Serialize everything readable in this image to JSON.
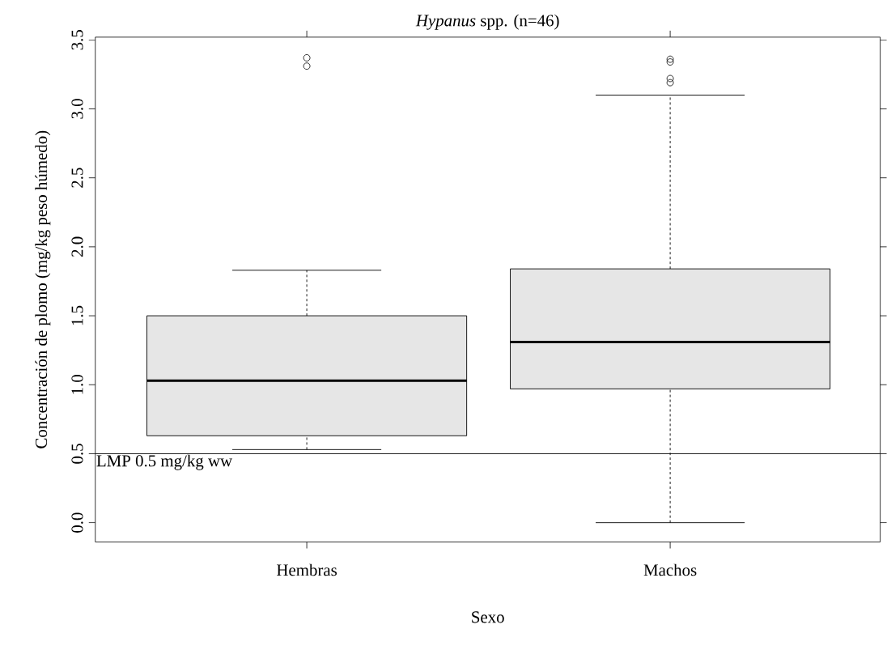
{
  "chart_data": {
    "type": "box",
    "title": "*Hypanus* spp. (n=46)",
    "xlabel": "Sexo",
    "ylabel": "Concentración de plomo (mg/kg peso húmedo)",
    "categories": [
      "Hembras",
      "Machos"
    ],
    "series": [
      {
        "color": "#e6e6e6",
        "boxes": [
          {
            "low": 0.53,
            "q1": 0.63,
            "median": 1.03,
            "q3": 1.5,
            "high": 1.83,
            "outliers": [
              3.37,
              3.31
            ]
          },
          {
            "low": 0.0,
            "q1": 0.97,
            "median": 1.31,
            "q3": 1.84,
            "high": 3.1,
            "outliers": [
              3.36,
              3.34,
              3.22,
              3.19
            ]
          }
        ]
      }
    ],
    "marker": "circle",
    "ylim": [
      -0.14,
      3.52
    ],
    "yticks": [
      {
        "value": 0,
        "label": "0.0"
      },
      0.5,
      {
        "value": 1,
        "label": "1.0"
      },
      1.5,
      {
        "value": 2,
        "label": "2.0"
      },
      2.5,
      {
        "value": 3,
        "label": "3.0"
      },
      3.5
    ],
    "ref_lines": [
      {
        "axis": "y",
        "value": 0.5,
        "label": "LMP 0.5 mg/kg ww"
      }
    ]
  }
}
